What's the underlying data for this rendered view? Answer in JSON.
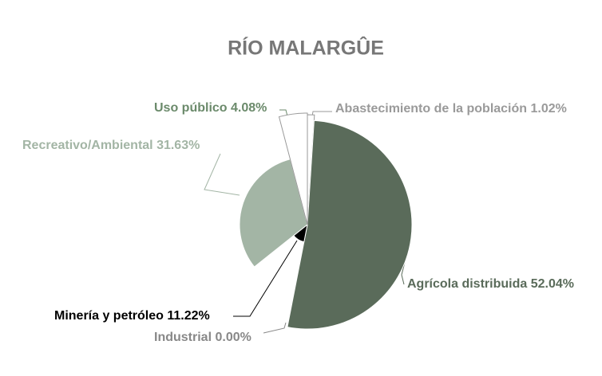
{
  "chart_data": {
    "type": "pie",
    "title": "RÍO MALARGÛE",
    "categories": [
      "Abastecimiento de la población",
      "Agrícola distribuida",
      "Industrial",
      "Minería y petróleo",
      "Recreativo/Ambiental",
      "Uso público"
    ],
    "values": [
      1.02,
      52.04,
      0.0,
      11.22,
      31.63,
      4.08
    ],
    "value_labels": [
      "1.02%",
      "52.04%",
      "0.00%",
      "11.22%",
      "31.63%",
      "4.08%"
    ],
    "radii": [
      138,
      131,
      0,
      22,
      85,
      140
    ],
    "colors": [
      "#ffffff",
      "#5a6b5a",
      "#ffffff",
      "#000000",
      "#a3b5a5",
      "#ffffff"
    ],
    "label_colors": [
      "#9a9a9a",
      "#5a6b5a",
      "#888888",
      "#000000",
      "#a3b5a5",
      "#6b8a6b"
    ]
  }
}
